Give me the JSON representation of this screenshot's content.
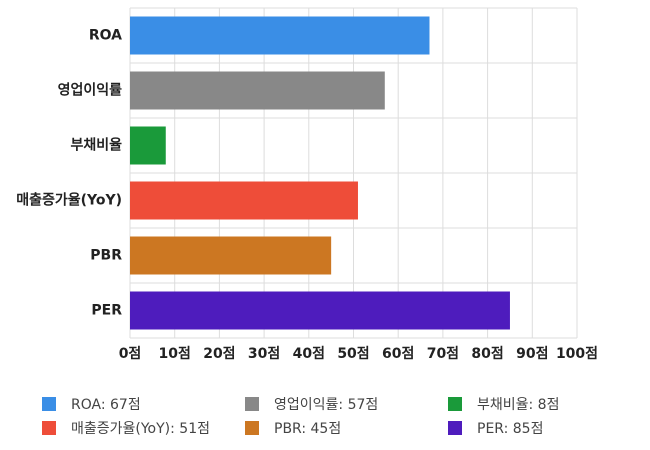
{
  "chart_data": {
    "type": "bar",
    "orientation": "horizontal",
    "categories": [
      "ROA",
      "영업이익률",
      "부채비율",
      "매출증가율(YoY)",
      "PBR",
      "PER"
    ],
    "values": [
      67,
      57,
      8,
      51,
      45,
      85
    ],
    "colors": [
      "#3a8ee6",
      "#888888",
      "#1a9a3a",
      "#ee4d39",
      "#cc7722",
      "#4e1cbd"
    ],
    "xlim": [
      0,
      100
    ],
    "xticks": [
      0,
      10,
      20,
      30,
      40,
      50,
      60,
      70,
      80,
      90,
      100
    ],
    "tick_suffix": "점",
    "grid": true,
    "legend_position": "bottom",
    "legend": [
      {
        "label": "ROA: 67점",
        "color": "#3a8ee6"
      },
      {
        "label": "영업이익률: 57점",
        "color": "#888888"
      },
      {
        "label": "부채비율: 8점",
        "color": "#1a9a3a"
      },
      {
        "label": "매출증가율(YoY): 51점",
        "color": "#ee4d39"
      },
      {
        "label": "PBR: 45점",
        "color": "#cc7722"
      },
      {
        "label": "PER: 85점",
        "color": "#4e1cbd"
      }
    ]
  }
}
